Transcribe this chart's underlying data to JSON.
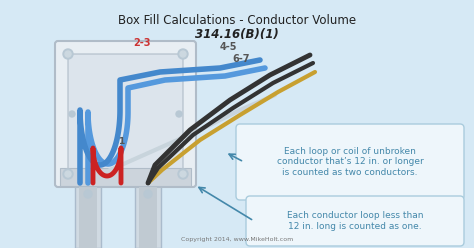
{
  "title_line1": "Box Fill Calculations - Conductor Volume",
  "title_line2": "314.16(B)(1)",
  "bg_color": "#d6e9f5",
  "box_face": "#e8eef3",
  "box_edge": "#b0bcc8",
  "box_inner": "#dce4ec",
  "label_23": "2-3",
  "label_45": "4-5",
  "label_67": "6-7",
  "label_1": "1",
  "label_red": "#cc3333",
  "label_dark": "#555555",
  "wire_blue": "#4488cc",
  "wire_blue2": "#5599dd",
  "wire_red": "#cc2222",
  "wire_black": "#333333",
  "wire_gold": "#c8a030",
  "wire_white": "#c8d4dc",
  "callout1_text": "Each loop or coil of unbroken\nconductor that’s 12 in. or longer\nis counted as two conductors.",
  "callout2_text": "Each conductor loop less than\n12 in. long is counted as one.",
  "callout_bg": "#eef6fb",
  "callout_border": "#aaccdd",
  "text_blue": "#4488aa",
  "copyright": "Copyright 2014, www.MikeHolt.com",
  "conduit_face": "#d8e0e8",
  "conduit_edge": "#aabbcc"
}
